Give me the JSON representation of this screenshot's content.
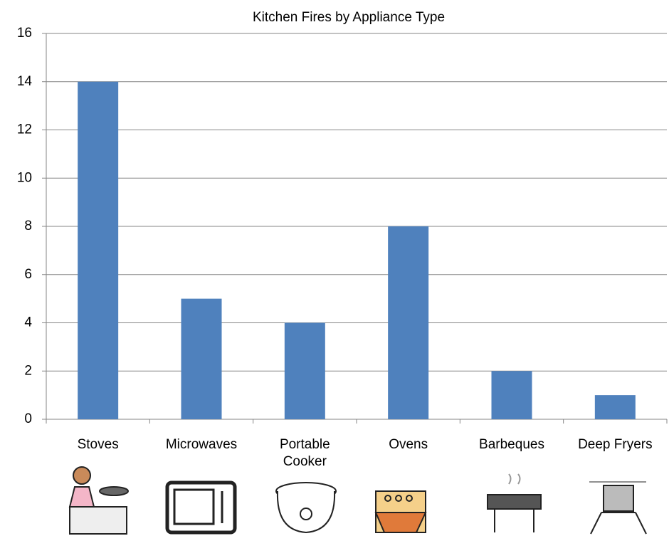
{
  "chart_data": {
    "type": "bar",
    "title": "Kitchen Fires by Appliance Type",
    "categories": [
      "Stoves",
      "Microwaves",
      "Portable Cooker",
      "Ovens",
      "Barbeques",
      "Deep Fryers"
    ],
    "values": [
      14,
      5,
      4,
      8,
      2,
      1
    ],
    "color": "#4f81bd",
    "ylim": [
      0,
      16
    ],
    "yticks": [
      0,
      2,
      4,
      6,
      8,
      10,
      12,
      14,
      16
    ],
    "grid": true
  }
}
